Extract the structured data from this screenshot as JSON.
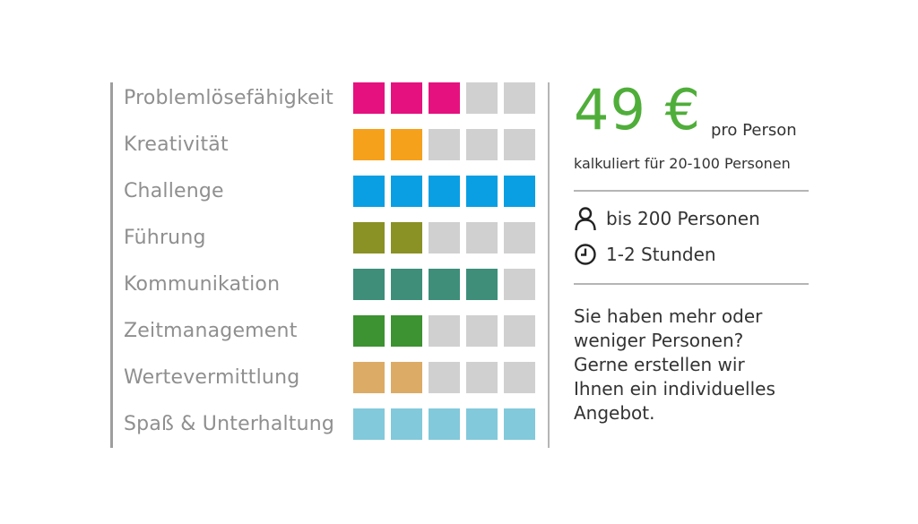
{
  "skills": [
    {
      "label": "Problemlösefähigkeit",
      "level": 3,
      "max": 5,
      "color": "#e5117f"
    },
    {
      "label": "Kreativität",
      "level": 2,
      "max": 5,
      "color": "#f5a11c"
    },
    {
      "label": "Challenge",
      "level": 5,
      "max": 5,
      "color": "#0a9fe3"
    },
    {
      "label": "Führung",
      "level": 2,
      "max": 5,
      "color": "#8a9125"
    },
    {
      "label": "Kommunikation",
      "level": 4,
      "max": 5,
      "color": "#3e8e7a"
    },
    {
      "label": "Zeitmanagement",
      "level": 2,
      "max": 5,
      "color": "#3d9231"
    },
    {
      "label": "Wertevermittlung",
      "level": 2,
      "max": 5,
      "color": "#dcab66"
    },
    {
      "label": "Spaß & Unterhaltung",
      "level": 5,
      "max": 5,
      "color": "#82c9db"
    }
  ],
  "empty_color": "#d0d0d0",
  "pricing": {
    "price": "49 €",
    "per_person": "pro Person",
    "calculated_for": "kalkuliert für 20-100 Personen",
    "accent_color": "#4fae3a"
  },
  "info": {
    "capacity": "bis 200 Personen",
    "capacity_icon": "person-icon",
    "duration": "1-2 Stunden",
    "duration_icon": "clock-icon"
  },
  "note_lines": [
    "Sie haben mehr oder",
    "weniger Personen?",
    "Gerne erstellen wir",
    "Ihnen ein individuelles",
    "Angebot."
  ]
}
